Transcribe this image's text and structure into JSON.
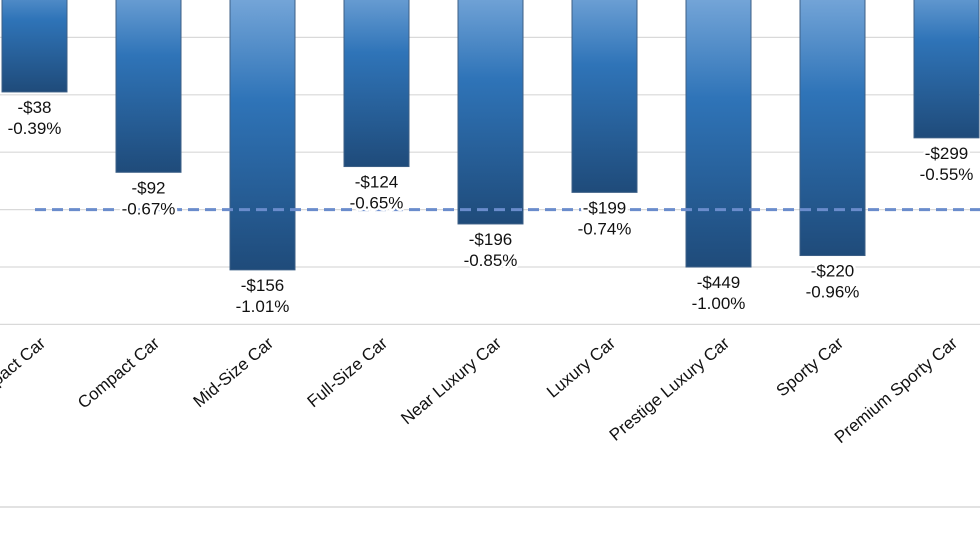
{
  "chart_data": {
    "type": "bar",
    "title": "",
    "xlabel": "",
    "ylabel": "",
    "categories": [
      "Subcompact Car",
      "Compact Car",
      "Mid-Size Car",
      "Full-Size Car",
      "Near Luxury Car",
      "Luxury Car",
      "Prestige Luxury Car",
      "Sporty Car",
      "Premium Sporty Car"
    ],
    "dollar_labels": [
      "-$38",
      "-$92",
      "-$156",
      "-$124",
      "-$196",
      "-$199",
      "-$449",
      "-$220",
      "-$299"
    ],
    "percent_labels": [
      "-0.39%",
      "-0.67%",
      "-1.01%",
      "-0.65%",
      "-0.85%",
      "-0.74%",
      "-1.00%",
      "-0.96%",
      "-0.55%"
    ],
    "values": [
      -0.39,
      -0.67,
      -1.01,
      -0.65,
      -0.85,
      -0.74,
      -1.0,
      -0.96,
      -0.55
    ],
    "dollar_values": [
      -38,
      -92,
      -156,
      -124,
      -196,
      -199,
      -449,
      -220,
      -299
    ],
    "reference_line": -0.8,
    "ylim": [
      -1.2,
      0
    ],
    "y_grid_step": 0.2,
    "grid": true,
    "colors": {
      "bar_top": "#8fb8e4",
      "bar_mid": "#2f74b8",
      "bar_bottom": "#1f4b7a",
      "reference": "#6a8ccc",
      "grid": "#d9d9d9"
    }
  }
}
